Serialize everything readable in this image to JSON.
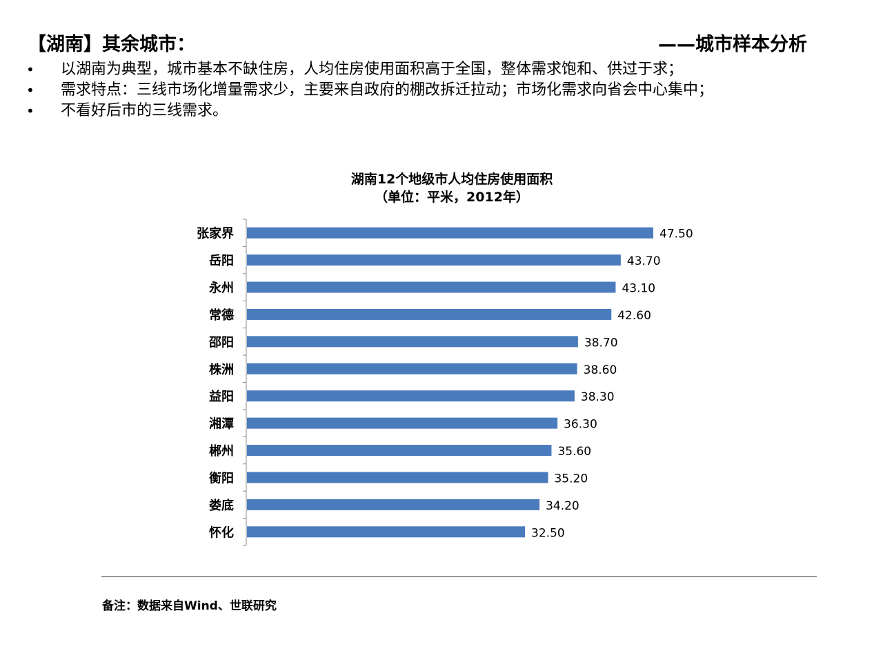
{
  "header": {
    "title": "【湖南】其余城市：",
    "section": "——城市样本分析"
  },
  "bullets": [
    "以湖南为典型，城市基本不缺住房，人均住房使用面积高于全国，整体需求饱和、供过于求；",
    "需求特点：三线市场化增量需求少，主要来自政府的棚改拆迁拉动；市场化需求向省会中心集中；",
    "不看好后市的三线需求。"
  ],
  "bullet_symbol": "•",
  "chart_data": {
    "type": "bar",
    "orientation": "horizontal",
    "title": "湖南12个地级市人均住房使用面积",
    "subtitle": "（单位：平米，2012年）",
    "categories": [
      "张家界",
      "岳阳",
      "永州",
      "常德",
      "邵阳",
      "株洲",
      "益阳",
      "湘潭",
      "郴州",
      "衡阳",
      "娄底",
      "怀化"
    ],
    "values": [
      47.5,
      43.7,
      43.1,
      42.6,
      38.7,
      38.6,
      38.3,
      36.3,
      35.6,
      35.2,
      34.2,
      32.5
    ],
    "data_labels": [
      "47.50",
      "43.70",
      "43.10",
      "42.60",
      "38.70",
      "38.60",
      "38.30",
      "36.30",
      "35.60",
      "35.20",
      "34.20",
      "32.50"
    ],
    "xlim": [
      0,
      47.5
    ],
    "bar_color": "#4a7bbd",
    "grid": false,
    "legend": "none"
  },
  "note": "备注：数据来自Wind、世联研究"
}
